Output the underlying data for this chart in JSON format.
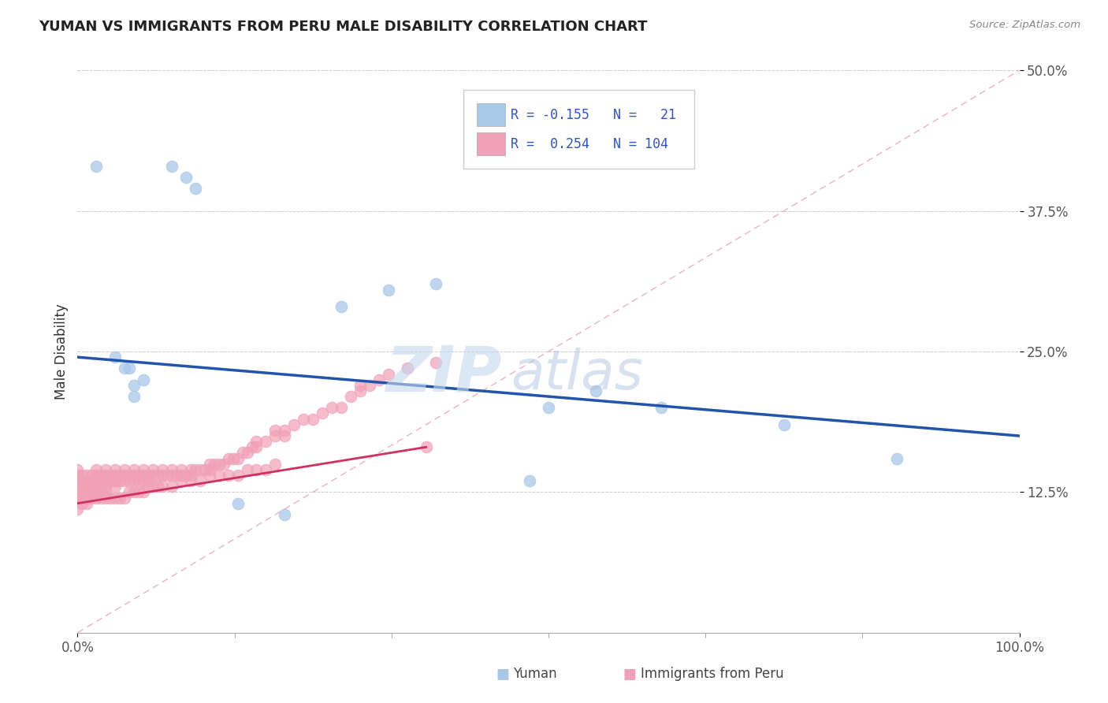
{
  "title": "YUMAN VS IMMIGRANTS FROM PERU MALE DISABILITY CORRELATION CHART",
  "source_text": "Source: ZipAtlas.com",
  "ylabel": "Male Disability",
  "x_min": 0.0,
  "x_max": 1.0,
  "y_min": 0.0,
  "y_max": 0.5,
  "y_ticks": [
    0.125,
    0.25,
    0.375,
    0.5
  ],
  "y_tick_labels": [
    "12.5%",
    "25.0%",
    "37.5%",
    "50.0%"
  ],
  "x_tick_labels": [
    "0.0%",
    "100.0%"
  ],
  "blue_color": "#A8C8E8",
  "pink_color": "#F0A0B8",
  "blue_line_color": "#2255AA",
  "pink_line_color": "#D03060",
  "diag_line_color": "#E8A0B0",
  "watermark_zip": "ZIP",
  "watermark_atlas": "atlas",
  "watermark_color_zip": "#C8D8F0",
  "watermark_color_atlas": "#B0C8E0",
  "background_color": "#FFFFFF",
  "blue_scatter_x": [
    0.02,
    0.1,
    0.115,
    0.125,
    0.04,
    0.05,
    0.055,
    0.06,
    0.06,
    0.07,
    0.33,
    0.38,
    0.55,
    0.62,
    0.75,
    0.87,
    0.5,
    0.48,
    0.22,
    0.28,
    0.17
  ],
  "blue_scatter_y": [
    0.415,
    0.415,
    0.405,
    0.395,
    0.245,
    0.235,
    0.235,
    0.22,
    0.21,
    0.225,
    0.305,
    0.31,
    0.215,
    0.2,
    0.185,
    0.155,
    0.2,
    0.135,
    0.105,
    0.29,
    0.115
  ],
  "pink_scatter_x": [
    0.0,
    0.0,
    0.0,
    0.0,
    0.0,
    0.005,
    0.005,
    0.005,
    0.005,
    0.01,
    0.01,
    0.01,
    0.01,
    0.01,
    0.015,
    0.015,
    0.015,
    0.015,
    0.02,
    0.02,
    0.02,
    0.02,
    0.02,
    0.025,
    0.025,
    0.025,
    0.03,
    0.03,
    0.03,
    0.03,
    0.03,
    0.035,
    0.035,
    0.04,
    0.04,
    0.04,
    0.04,
    0.045,
    0.045,
    0.05,
    0.05,
    0.05,
    0.055,
    0.055,
    0.06,
    0.06,
    0.06,
    0.065,
    0.065,
    0.07,
    0.07,
    0.07,
    0.075,
    0.075,
    0.08,
    0.08,
    0.085,
    0.09,
    0.09,
    0.095,
    0.1,
    0.1,
    0.105,
    0.11,
    0.11,
    0.115,
    0.12,
    0.12,
    0.125,
    0.13,
    0.135,
    0.14,
    0.14,
    0.145,
    0.15,
    0.155,
    0.16,
    0.165,
    0.17,
    0.175,
    0.18,
    0.185,
    0.19,
    0.19,
    0.2,
    0.21,
    0.21,
    0.22,
    0.22,
    0.23,
    0.24,
    0.25,
    0.26,
    0.27,
    0.28,
    0.29,
    0.3,
    0.3,
    0.31,
    0.32,
    0.33,
    0.35,
    0.38,
    0.37
  ],
  "pink_scatter_y": [
    0.135,
    0.14,
    0.145,
    0.13,
    0.12,
    0.14,
    0.135,
    0.13,
    0.125,
    0.14,
    0.135,
    0.13,
    0.125,
    0.12,
    0.14,
    0.135,
    0.13,
    0.125,
    0.145,
    0.14,
    0.135,
    0.13,
    0.125,
    0.14,
    0.135,
    0.13,
    0.145,
    0.14,
    0.135,
    0.13,
    0.125,
    0.14,
    0.135,
    0.145,
    0.14,
    0.135,
    0.13,
    0.14,
    0.135,
    0.145,
    0.14,
    0.135,
    0.14,
    0.135,
    0.145,
    0.14,
    0.135,
    0.14,
    0.135,
    0.145,
    0.14,
    0.135,
    0.14,
    0.135,
    0.145,
    0.14,
    0.14,
    0.145,
    0.14,
    0.14,
    0.145,
    0.14,
    0.14,
    0.145,
    0.14,
    0.14,
    0.145,
    0.14,
    0.145,
    0.145,
    0.145,
    0.15,
    0.145,
    0.15,
    0.15,
    0.15,
    0.155,
    0.155,
    0.155,
    0.16,
    0.16,
    0.165,
    0.165,
    0.17,
    0.17,
    0.175,
    0.18,
    0.175,
    0.18,
    0.185,
    0.19,
    0.19,
    0.195,
    0.2,
    0.2,
    0.21,
    0.215,
    0.22,
    0.22,
    0.225,
    0.23,
    0.235,
    0.24,
    0.165
  ],
  "pink_extra_x": [
    0.0,
    0.0,
    0.005,
    0.01,
    0.015,
    0.02,
    0.025,
    0.03,
    0.035,
    0.04,
    0.045,
    0.05,
    0.055,
    0.06,
    0.065,
    0.07,
    0.075,
    0.08,
    0.085,
    0.09,
    0.1,
    0.11,
    0.12,
    0.13,
    0.14,
    0.15,
    0.16,
    0.17,
    0.18,
    0.19,
    0.2,
    0.21
  ],
  "pink_extra_y": [
    0.12,
    0.11,
    0.115,
    0.115,
    0.12,
    0.12,
    0.12,
    0.12,
    0.12,
    0.12,
    0.12,
    0.12,
    0.125,
    0.125,
    0.125,
    0.125,
    0.13,
    0.13,
    0.13,
    0.13,
    0.13,
    0.135,
    0.135,
    0.135,
    0.14,
    0.14,
    0.14,
    0.14,
    0.145,
    0.145,
    0.145,
    0.15
  ]
}
